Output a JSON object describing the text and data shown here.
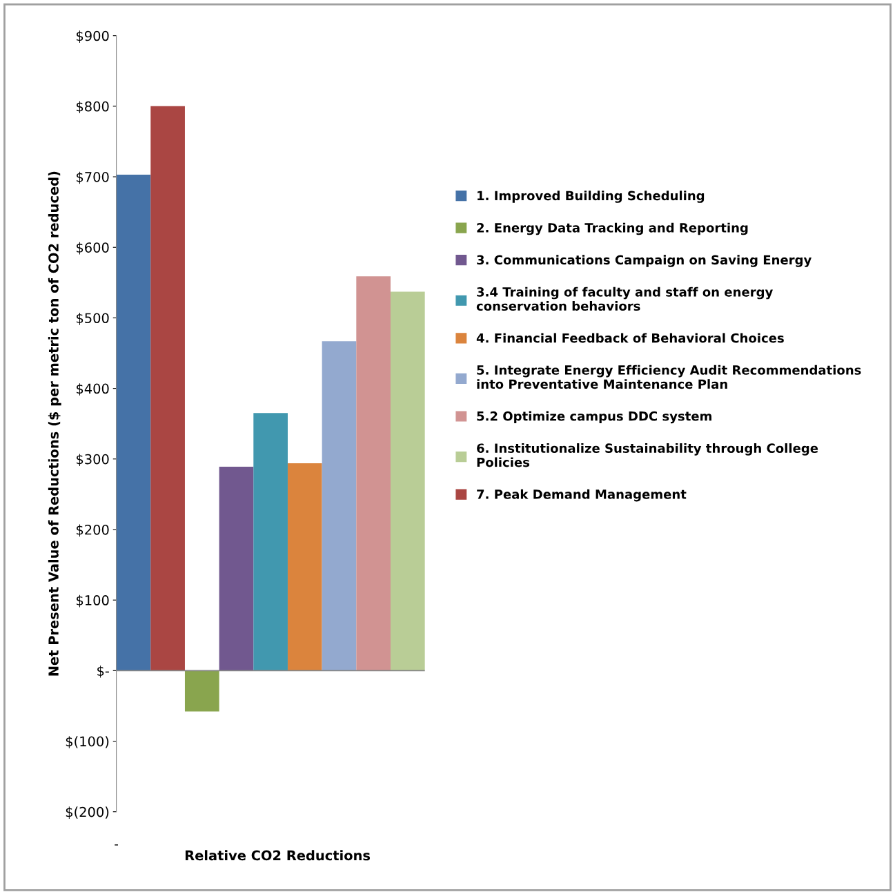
{
  "chart_data": {
    "type": "bar",
    "xlabel": "Relative CO2 Reductions",
    "ylabel": "Net Present Value of Reductions ($ per metric ton of CO2 reduced)",
    "categories": [
      null,
      null,
      null,
      null,
      null,
      null,
      null,
      null,
      null
    ],
    "series": [
      {
        "name": "1. Improved Building Scheduling",
        "color": "#4572a7",
        "values": [
          703,
          null,
          null,
          null,
          null,
          null,
          null,
          null,
          null
        ]
      },
      {
        "name": "2. Energy Data Tracking and Reporting",
        "color": "#89a54e",
        "values": [
          null,
          null,
          -58,
          null,
          null,
          null,
          null,
          null,
          null
        ]
      },
      {
        "name": "3. Communications Campaign on Saving Energy",
        "color": "#71588f",
        "values": [
          null,
          null,
          null,
          289,
          null,
          null,
          null,
          null,
          null
        ]
      },
      {
        "name": "3.4 Training of faculty and staff on energy conservation behaviors",
        "color": "#4198af",
        "values": [
          null,
          null,
          null,
          null,
          365,
          null,
          null,
          null,
          null
        ]
      },
      {
        "name": "4. Financial Feedback of Behavioral Choices",
        "color": "#db843d",
        "values": [
          null,
          null,
          null,
          null,
          null,
          294,
          null,
          null,
          null
        ]
      },
      {
        "name": "5. Integrate Energy Efficiency Audit Recommendations into Preventative Maintenance Plan",
        "color": "#93a9cf",
        "values": [
          null,
          null,
          null,
          null,
          null,
          null,
          467,
          null,
          null
        ]
      },
      {
        "name": "5.2 Optimize campus DDC system",
        "color": "#d19392",
        "values": [
          null,
          null,
          null,
          null,
          null,
          null,
          null,
          559,
          null
        ]
      },
      {
        "name": "6. Institutionalize Sustainability through College Policies",
        "color": "#b9cd96",
        "values": [
          null,
          null,
          null,
          null,
          null,
          null,
          null,
          null,
          537
        ]
      },
      {
        "name": "7. Peak Demand Management",
        "color": "#aa4643",
        "values": [
          null,
          800,
          null,
          null,
          null,
          null,
          null,
          null,
          null
        ]
      }
    ],
    "ylim": [
      -200,
      900
    ],
    "yticks": [
      {
        "value": 900,
        "label": "$900"
      },
      {
        "value": 800,
        "label": "$800"
      },
      {
        "value": 700,
        "label": "$700"
      },
      {
        "value": 600,
        "label": "$600"
      },
      {
        "value": 500,
        "label": "$500"
      },
      {
        "value": 400,
        "label": "$400"
      },
      {
        "value": 300,
        "label": "$300"
      },
      {
        "value": 200,
        "label": "$200"
      },
      {
        "value": 100,
        "label": "$100"
      },
      {
        "value": 0,
        "label": "$-"
      },
      {
        "value": -100,
        "label": "$(100)"
      },
      {
        "value": -200,
        "label": "$(200)"
      }
    ],
    "annotations": [
      "-"
    ],
    "ref_lines": [
      {
        "axis": "y",
        "value": 0,
        "color": "#868686"
      }
    ],
    "grid": false,
    "legend": "right"
  }
}
